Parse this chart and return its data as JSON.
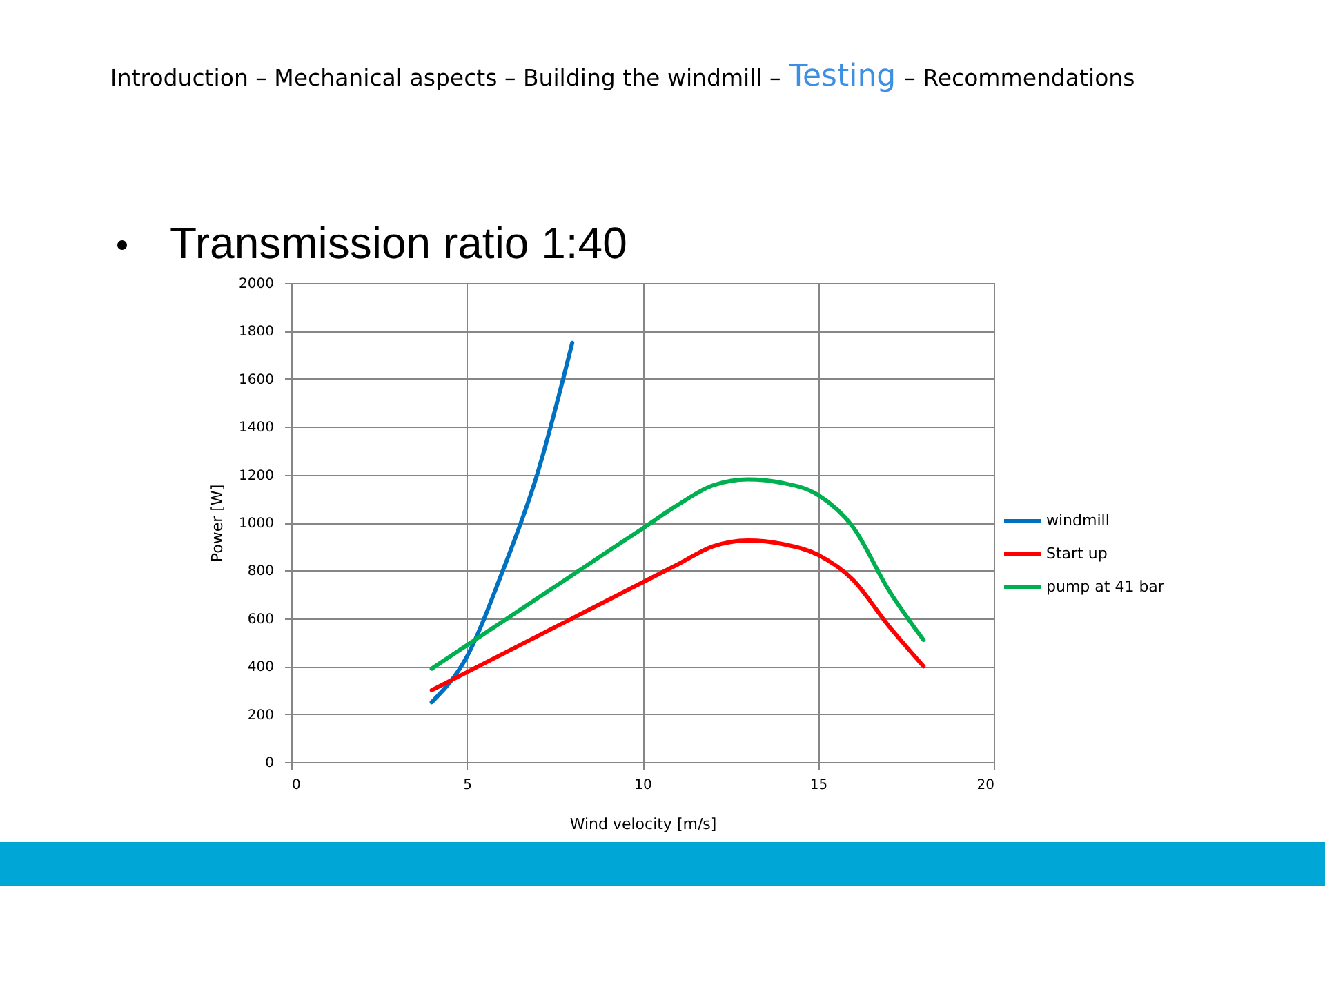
{
  "chart_data": {
    "type": "line",
    "title": "Transmission ratio 1:40",
    "annotations": [
      "Introduction – Mechanical aspects – Building the windmill –",
      "Testing",
      "– Recommendations"
    ],
    "xlabel": "Wind velocity [m/s]",
    "ylabel": "Power [W]",
    "xlim": [
      0,
      20
    ],
    "xticks": [
      0,
      5,
      10,
      15,
      20
    ],
    "ylim": [
      0,
      2000
    ],
    "yticks": [
      0,
      200,
      400,
      600,
      800,
      1000,
      1200,
      1400,
      1600,
      1800,
      2000
    ],
    "grid": true,
    "legend": "right",
    "marker": "none",
    "line_style": "solid",
    "series": [
      {
        "name": "windmill",
        "color": "#0070c0",
        "x": [
          4,
          5,
          6,
          7,
          8
        ],
        "values": [
          250,
          440,
          790,
          1200,
          1750
        ]
      },
      {
        "name": "Start up",
        "color": "#ff0000",
        "x": [
          4,
          5,
          6,
          7,
          8,
          9,
          10,
          11,
          12,
          13,
          14,
          15,
          16,
          17,
          18
        ],
        "values": [
          300,
          375,
          450,
          525,
          600,
          675,
          750,
          825,
          900,
          925,
          910,
          865,
          760,
          570,
          400
        ]
      },
      {
        "name": "pump at 41 bar",
        "color": "#00b050",
        "x": [
          4,
          5,
          6,
          7,
          8,
          9,
          10,
          11,
          12,
          13,
          14,
          15,
          16,
          17,
          18
        ],
        "values": [
          390,
          488,
          585,
          683,
          780,
          878,
          975,
          1073,
          1155,
          1180,
          1165,
          1115,
          980,
          720,
          510
        ]
      }
    ]
  }
}
